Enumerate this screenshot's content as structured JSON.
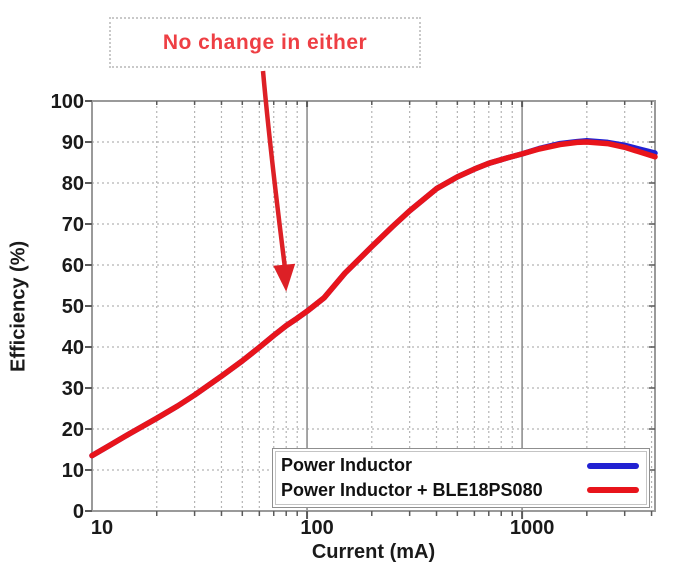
{
  "colors": {
    "grid_minor": "#b4b4b4",
    "grid_major": "#8f8f8f",
    "axis_border": "#9a9a9a",
    "tick": "#5a5a5a",
    "tick_label": "#1a1a1a"
  },
  "chart_data": {
    "type": "line",
    "title": "",
    "xlabel": "Current (mA)",
    "ylabel": "Efficiency (%)",
    "x_scale": "log",
    "xlim": [
      10,
      4150
    ],
    "ylim": [
      0,
      100
    ],
    "grid": {
      "horizontal_step": 10,
      "vertical": "log-minor-dotted",
      "major_verticals": [
        100,
        1000
      ]
    },
    "legend_position": "lower-right",
    "x_ticks": [
      {
        "value": 10,
        "label": "10"
      },
      {
        "value": 100,
        "label": "100"
      },
      {
        "value": 1000,
        "label": "1000"
      }
    ],
    "y_ticks": [
      {
        "value": 0,
        "label": "0"
      },
      {
        "value": 10,
        "label": "10"
      },
      {
        "value": 20,
        "label": "20"
      },
      {
        "value": 30,
        "label": "30"
      },
      {
        "value": 40,
        "label": "40"
      },
      {
        "value": 50,
        "label": "50"
      },
      {
        "value": 60,
        "label": "60"
      },
      {
        "value": 70,
        "label": "70"
      },
      {
        "value": 80,
        "label": "80"
      },
      {
        "value": 90,
        "label": "90"
      },
      {
        "value": 100,
        "label": "100"
      }
    ],
    "series": [
      {
        "name": "Power Inductor",
        "color": "#2121d2",
        "points": [
          [
            10,
            13.5
          ],
          [
            12,
            15.9
          ],
          [
            15,
            18.9
          ],
          [
            20,
            22.6
          ],
          [
            25,
            25.6
          ],
          [
            30,
            28.3
          ],
          [
            40,
            32.9
          ],
          [
            50,
            36.6
          ],
          [
            60,
            39.9
          ],
          [
            70,
            42.8
          ],
          [
            80,
            45.2
          ],
          [
            90,
            47.0
          ],
          [
            100,
            48.7
          ],
          [
            120,
            52.0
          ],
          [
            150,
            58.0
          ],
          [
            200,
            64.5
          ],
          [
            250,
            69.4
          ],
          [
            300,
            73.2
          ],
          [
            400,
            78.6
          ],
          [
            500,
            81.5
          ],
          [
            600,
            83.4
          ],
          [
            700,
            84.8
          ],
          [
            850,
            86.1
          ],
          [
            1000,
            87.1
          ],
          [
            1200,
            88.4
          ],
          [
            1500,
            89.6
          ],
          [
            1800,
            90.1
          ],
          [
            2000,
            90.3
          ],
          [
            2500,
            89.9
          ],
          [
            3000,
            89.2
          ],
          [
            3500,
            88.3
          ],
          [
            4150,
            87.3
          ]
        ]
      },
      {
        "name": "Power Inductor + BLE18PS080",
        "color": "#e8141b",
        "points": [
          [
            10,
            13.5
          ],
          [
            12,
            15.9
          ],
          [
            15,
            18.9
          ],
          [
            20,
            22.6
          ],
          [
            25,
            25.6
          ],
          [
            30,
            28.3
          ],
          [
            40,
            32.9
          ],
          [
            50,
            36.6
          ],
          [
            60,
            39.9
          ],
          [
            70,
            42.8
          ],
          [
            80,
            45.2
          ],
          [
            90,
            47.0
          ],
          [
            100,
            48.7
          ],
          [
            120,
            52.0
          ],
          [
            150,
            58.0
          ],
          [
            200,
            64.5
          ],
          [
            250,
            69.4
          ],
          [
            300,
            73.2
          ],
          [
            400,
            78.6
          ],
          [
            500,
            81.5
          ],
          [
            600,
            83.4
          ],
          [
            700,
            84.8
          ],
          [
            850,
            86.1
          ],
          [
            1000,
            87.1
          ],
          [
            1200,
            88.3
          ],
          [
            1500,
            89.4
          ],
          [
            1800,
            89.9
          ],
          [
            2000,
            90.0
          ],
          [
            2500,
            89.6
          ],
          [
            3000,
            88.7
          ],
          [
            3500,
            87.6
          ],
          [
            4150,
            86.4
          ]
        ]
      }
    ],
    "annotation": {
      "text": "No change in either",
      "text_color": "#ee3f44",
      "arrow_color": "#dd2026",
      "points_at": {
        "x_mA": 80,
        "y_pct": 52
      }
    }
  }
}
